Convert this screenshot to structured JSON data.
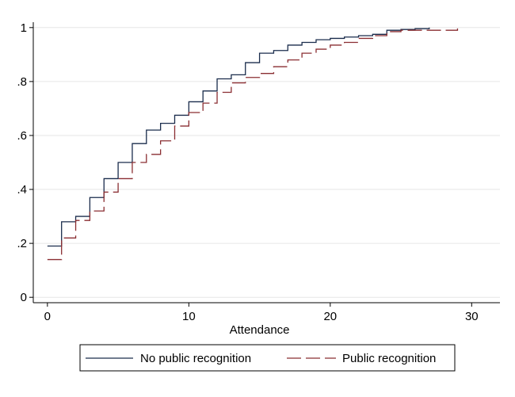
{
  "chart_data": {
    "type": "line",
    "step": true,
    "xlabel": "Attendance",
    "ylabel": "",
    "xlim": [
      -1,
      32
    ],
    "ylim": [
      -0.02,
      1.02
    ],
    "x_ticks": [
      0,
      10,
      20,
      30
    ],
    "x_tick_labels": [
      "0",
      "10",
      "20",
      "30"
    ],
    "y_ticks": [
      0,
      0.2,
      0.4,
      0.6,
      0.8,
      1
    ],
    "y_tick_labels": [
      "0",
      ".2",
      ".4",
      ".6",
      ".8",
      "1"
    ],
    "grid": true,
    "legend_position": "bottom",
    "series": [
      {
        "name": "No public recognition",
        "color": "#1a2c4c",
        "dash": "solid",
        "x": [
          0,
          1,
          2,
          3,
          4,
          5,
          6,
          7,
          8,
          9,
          10,
          11,
          12,
          13,
          14,
          15,
          16,
          17,
          18,
          19,
          20,
          21,
          22,
          23,
          24,
          25,
          26,
          27
        ],
        "values": [
          0.19,
          0.28,
          0.3,
          0.37,
          0.44,
          0.5,
          0.57,
          0.62,
          0.645,
          0.675,
          0.725,
          0.765,
          0.81,
          0.825,
          0.87,
          0.905,
          0.915,
          0.935,
          0.945,
          0.955,
          0.96,
          0.965,
          0.97,
          0.975,
          0.99,
          0.993,
          0.996,
          1.0
        ]
      },
      {
        "name": "Public recognition",
        "color": "#8a2e32",
        "dash": "long-dash",
        "x": [
          0,
          1,
          2,
          3,
          4,
          5,
          6,
          7,
          8,
          9,
          10,
          11,
          12,
          13,
          14,
          15,
          16,
          17,
          18,
          19,
          20,
          21,
          22,
          23,
          24,
          25,
          26,
          27,
          28,
          29
        ],
        "values": [
          0.14,
          0.22,
          0.285,
          0.32,
          0.39,
          0.44,
          0.5,
          0.53,
          0.58,
          0.635,
          0.685,
          0.72,
          0.76,
          0.795,
          0.815,
          0.83,
          0.855,
          0.88,
          0.905,
          0.92,
          0.935,
          0.945,
          0.96,
          0.97,
          0.985,
          0.99,
          0.99,
          0.99,
          0.99,
          0.997
        ]
      }
    ]
  }
}
